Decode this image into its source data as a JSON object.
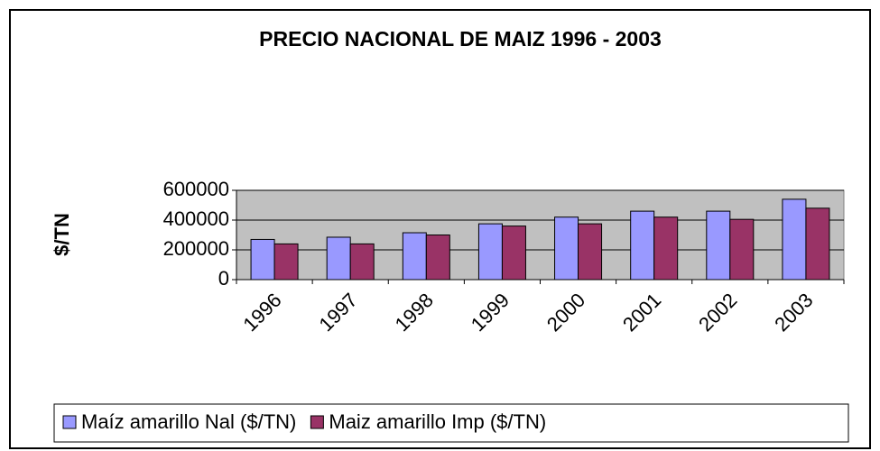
{
  "chart_data": {
    "type": "bar",
    "title": "PRECIO NACIONAL DE MAIZ 1996 - 2003",
    "y_label": "$/TN",
    "categories": [
      "1996",
      "1997",
      "1998",
      "1999",
      "2000",
      "2001",
      "2002",
      "2003"
    ],
    "series": [
      {
        "name": "Maíz amarillo Nal ($/TN)",
        "color": "#9999ff",
        "values": [
          270000,
          285000,
          315000,
          375000,
          420000,
          460000,
          460000,
          540000
        ]
      },
      {
        "name": "Maiz amarillo Imp ($/TN)",
        "color": "#993366",
        "values": [
          240000,
          240000,
          300000,
          360000,
          375000,
          420000,
          405000,
          480000
        ]
      }
    ],
    "ylim": [
      0,
      600000
    ],
    "yticks": [
      0,
      200000,
      400000,
      600000
    ],
    "grid": true,
    "legend": "bottom"
  }
}
